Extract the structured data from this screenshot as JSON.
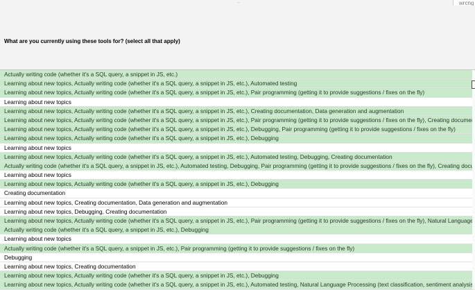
{
  "top_mark": "..",
  "corner_text": "wrcng",
  "column_header": "What are you currently using these tools for? (select all that apply)",
  "rows": [
    {
      "text": "Actually writing code (whether it's a SQL query, a snippet in JS, etc.)",
      "hl": true
    },
    {
      "text": "Learning about new topics, Actually writing code (whether it's a SQL query, a snippet in JS, etc.), Automated testing",
      "hl": true
    },
    {
      "text": "Learning about new topics, Actually writing code (whether it's a SQL query, a snippet in JS, etc.), Pair programming (getting it to provide suggestions / fixes on the fly)",
      "hl": true
    },
    {
      "text": "Learning about new topics",
      "hl": false
    },
    {
      "text": "Learning about new topics, Actually writing code (whether it's a SQL query, a snippet in JS, etc.), Creating documentation, Data generation and augmentation",
      "hl": true
    },
    {
      "text": "Learning about new topics, Actually writing code (whether it's a SQL query, a snippet in JS, etc.), Pair programming (getting it to provide suggestions / fixes on the fly), Creating documentation",
      "hl": true
    },
    {
      "text": "Learning about new topics, Actually writing code (whether it's a SQL query, a snippet in JS, etc.), Debugging, Pair programming (getting it to provide suggestions / fixes on the fly)",
      "hl": true
    },
    {
      "text": "Learning about new topics, Actually writing code (whether it's a SQL query, a snippet in JS, etc.), Debugging",
      "hl": true
    },
    {
      "text": "Learning about new topics",
      "hl": false
    },
    {
      "text": "Learning about new topics, Actually writing code (whether it's a SQL query, a snippet in JS, etc.), Automated testing, Debugging, Creating documentation",
      "hl": true
    },
    {
      "text": "Actually writing code (whether it's a SQL query, a snippet in JS, etc.), Automated testing, Debugging, Pair programming (getting it to provide suggestions / fixes on the fly), Creating documentation",
      "hl": true
    },
    {
      "text": "Learning about new topics",
      "hl": false
    },
    {
      "text": "Learning about new topics, Actually writing code (whether it's a SQL query, a snippet in JS, etc.), Debugging",
      "hl": true
    },
    {
      "text": "Creating documentation",
      "hl": false
    },
    {
      "text": "Learning about new topics, Creating documentation, Data generation and augmentation",
      "hl": false
    },
    {
      "text": "Learning about new topics, Debugging, Creating documentation",
      "hl": false
    },
    {
      "text": "Learning about new topics, Actually writing code (whether it's a SQL query, a snippet in JS, etc.), Pair programming (getting it to provide suggestions / fixes on the fly), Natural Language Processing",
      "hl": true
    },
    {
      "text": "Actually writing code (whether it's a SQL query, a snippet in JS, etc.), Debugging",
      "hl": true
    },
    {
      "text": "Learning about new topics",
      "hl": false
    },
    {
      "text": "Actually writing code (whether it's a SQL query, a snippet in JS, etc.), Pair programming (getting it to provide suggestions / fixes on the fly)",
      "hl": true
    },
    {
      "text": "Debugging",
      "hl": false
    },
    {
      "text": "Learning about new topics, Creating documentation",
      "hl": false
    },
    {
      "text": "Learning about new topics, Actually writing code (whether it's a SQL query, a snippet in JS, etc.), Debugging",
      "hl": true
    },
    {
      "text": "Learning about new topics, Actually writing code (whether it's a SQL query, a snippet in JS, etc.), Automated testing, Natural Language Processing (text classification, sentiment analysis)",
      "hl": true
    }
  ],
  "colors": {
    "highlight": "#c8eacb",
    "header_bg": "#f3f3f3"
  }
}
